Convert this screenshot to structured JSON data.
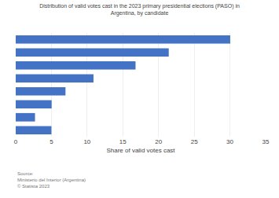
{
  "chart_data": {
    "type": "bar",
    "orientation": "horizontal",
    "title": "Distribution of valid votes cast in the 2023 primary presidential elections (PASO) in\nArgentina, by candidate",
    "xlabel": "Share of valid votes cast",
    "categories": [
      null,
      null,
      null,
      null,
      null,
      null,
      null,
      null
    ],
    "values": [
      30.04,
      21.43,
      16.78,
      10.89,
      6.97,
      5.03,
      2.7,
      5.0
    ],
    "color": "#4472c4",
    "xlim": [
      0,
      35
    ],
    "xticks": [
      0,
      5,
      10,
      15,
      20,
      25,
      30,
      35
    ],
    "grid": true,
    "tick_labels": "x",
    "annotations": [
      "Source:\nMinisterio del Interior (Argentina)\n© Statista 2023"
    ]
  }
}
